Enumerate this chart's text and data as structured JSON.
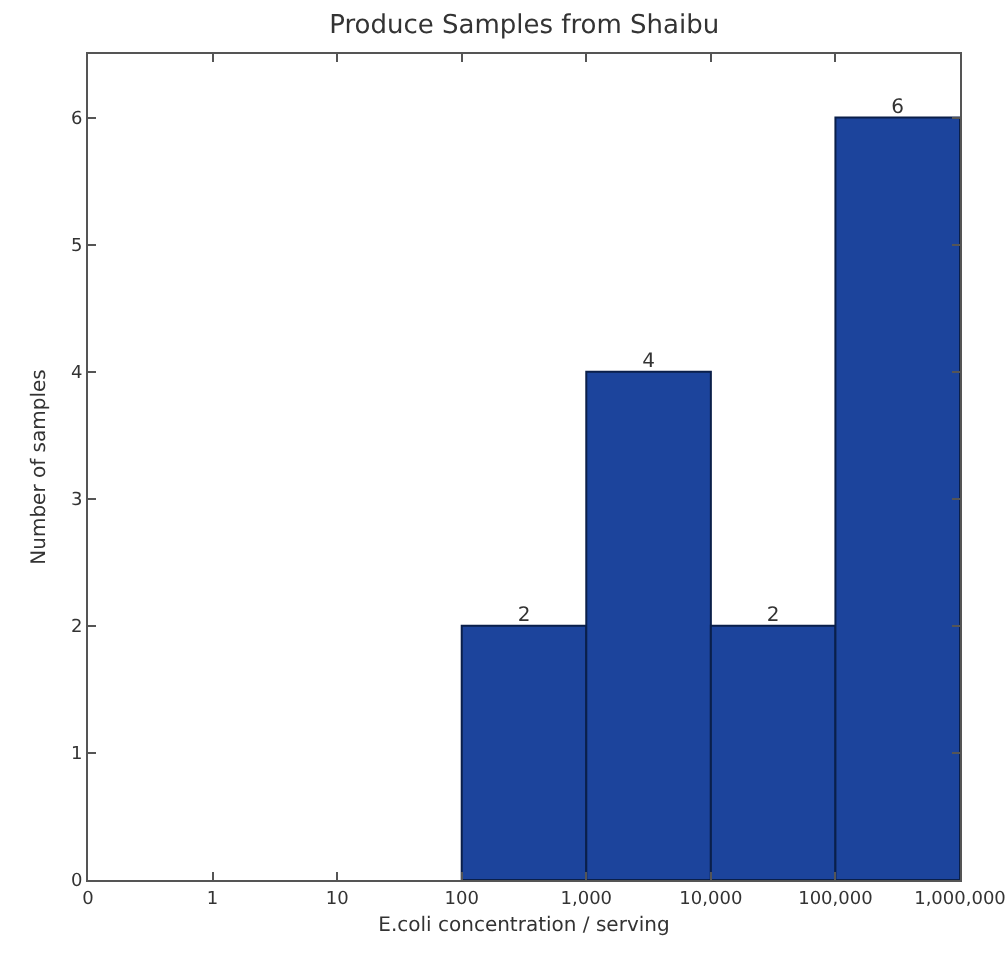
{
  "chart_data": {
    "type": "histogram",
    "title": "Produce Samples from Shaibu",
    "xlabel": "E.coli concentration / serving",
    "ylabel": "Number of samples",
    "bins": [
      100,
      1000,
      10000,
      100000,
      1000000
    ],
    "values": [
      2,
      4,
      2,
      6
    ],
    "color": "#1c449c",
    "data_labels": true,
    "log": "x",
    "xlim": [
      0.1,
      1000000
    ],
    "xticks": [
      {
        "value": 0.1,
        "label": "0"
      },
      1,
      10,
      100,
      {
        "value": 1000,
        "label": "1,000"
      },
      {
        "value": 10000,
        "label": "10,000"
      },
      {
        "value": 100000,
        "label": "100,000"
      },
      {
        "value": 1000000,
        "label": "1,000,000"
      }
    ],
    "ylim": [
      0,
      6.5
    ],
    "yticks": [
      0,
      1,
      2,
      3,
      4,
      5,
      6
    ],
    "grid": false
  }
}
